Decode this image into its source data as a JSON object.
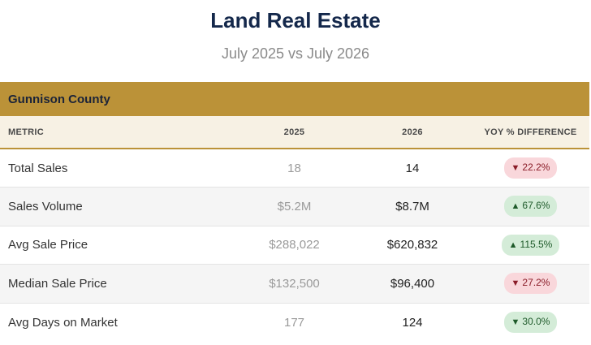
{
  "header": {
    "title": "Land Real Estate",
    "subtitle": "July 2025 vs July 2026"
  },
  "region": {
    "label": "Gunnison County",
    "color": "#bb9238"
  },
  "table": {
    "columns": [
      "METRIC",
      "2025",
      "2026",
      "YOY % DIFFERENCE"
    ],
    "rows": [
      {
        "metric": "Total Sales",
        "v2025": "18",
        "v2026": "14",
        "arrow": "▼",
        "yoy": "22.2%",
        "tone": "down-bad"
      },
      {
        "metric": "Sales Volume",
        "v2025": "$5.2M",
        "v2026": "$8.7M",
        "arrow": "▲",
        "yoy": "67.6%",
        "tone": "up-good"
      },
      {
        "metric": "Avg Sale Price",
        "v2025": "$288,022",
        "v2026": "$620,832",
        "arrow": "▲",
        "yoy": "115.5%",
        "tone": "up-good"
      },
      {
        "metric": "Median Sale Price",
        "v2025": "$132,500",
        "v2026": "$96,400",
        "arrow": "▼",
        "yoy": "27.2%",
        "tone": "down-bad"
      },
      {
        "metric": "Avg Days on Market",
        "v2025": "177",
        "v2026": "124",
        "arrow": "▼",
        "yoy": "30.0%",
        "tone": "down-good"
      }
    ]
  },
  "colors": {
    "title": "#14284b",
    "negative_badge": "#f9d7db",
    "positive_badge": "#d4ecd8"
  }
}
